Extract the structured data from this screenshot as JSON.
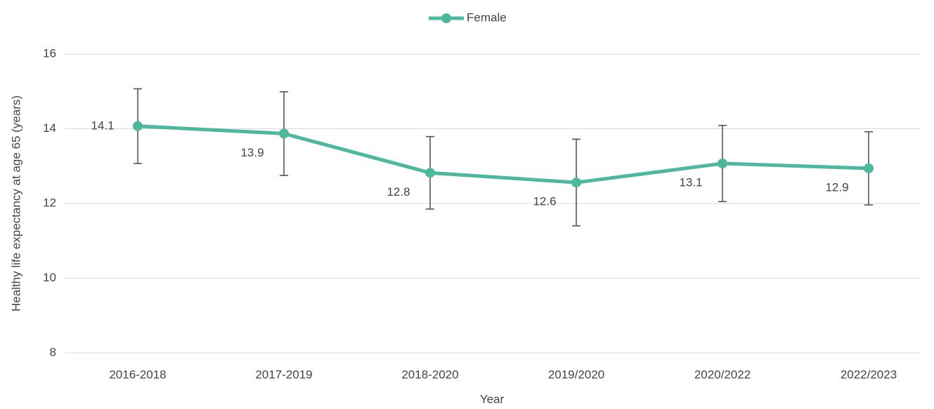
{
  "chart_data": {
    "type": "line",
    "categories": [
      "2016-2018",
      "2017-2019",
      "2018-2020",
      "2019/2020",
      "2020/2022",
      "2022/2023"
    ],
    "series": [
      {
        "name": "Female",
        "color": "#4db89e",
        "values": [
          14.07,
          13.87,
          12.82,
          12.56,
          13.07,
          12.94
        ],
        "value_labels": [
          "14.1",
          "13.9",
          "12.8",
          "12.6",
          "13.1",
          "12.9"
        ],
        "errors": [
          1.0,
          1.12,
          0.97,
          1.16,
          1.02,
          0.98
        ]
      }
    ],
    "x_label": "Year",
    "y_label": "Healthy life expectancy at age 65 (years)",
    "ylim": [
      8,
      16
    ],
    "yticks": [
      8,
      10,
      12,
      14,
      16
    ],
    "grid": true,
    "legend": "top"
  }
}
